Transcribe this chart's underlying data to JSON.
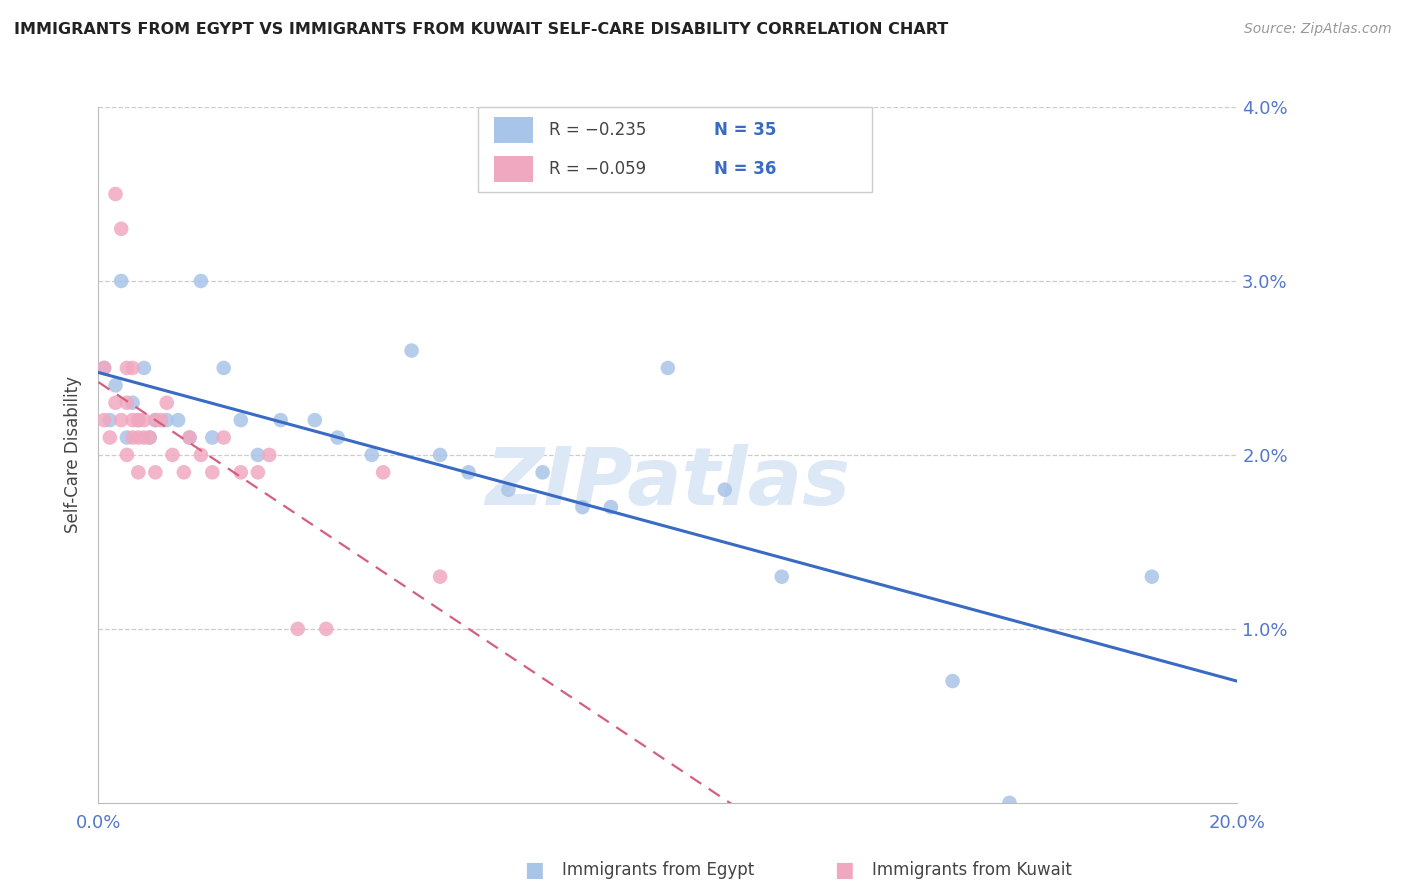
{
  "title": "IMMIGRANTS FROM EGYPT VS IMMIGRANTS FROM KUWAIT SELF-CARE DISABILITY CORRELATION CHART",
  "source": "Source: ZipAtlas.com",
  "ylabel": "Self-Care Disability",
  "xlim": [
    0.0,
    0.2
  ],
  "ylim": [
    0.0,
    0.04
  ],
  "legend_egypt_R": "-0.235",
  "legend_egypt_N": "35",
  "legend_kuwait_R": "-0.059",
  "legend_kuwait_N": "36",
  "egypt_color": "#a8c4e8",
  "kuwait_color": "#f0a8c0",
  "egypt_line_color": "#3a6bc4",
  "kuwait_line_color": "#d46080",
  "watermark": "ZIPatlas",
  "watermark_color": "#dce8f5",
  "egypt_x": [
    0.001,
    0.002,
    0.003,
    0.004,
    0.005,
    0.006,
    0.007,
    0.008,
    0.009,
    0.01,
    0.012,
    0.014,
    0.016,
    0.018,
    0.02,
    0.022,
    0.025,
    0.028,
    0.032,
    0.038,
    0.042,
    0.048,
    0.055,
    0.06,
    0.065,
    0.072,
    0.078,
    0.085,
    0.09,
    0.1,
    0.11,
    0.12,
    0.15,
    0.16,
    0.185
  ],
  "egypt_y": [
    0.025,
    0.022,
    0.024,
    0.03,
    0.021,
    0.023,
    0.022,
    0.025,
    0.021,
    0.022,
    0.022,
    0.022,
    0.021,
    0.03,
    0.021,
    0.025,
    0.022,
    0.02,
    0.022,
    0.022,
    0.021,
    0.02,
    0.026,
    0.02,
    0.019,
    0.018,
    0.019,
    0.017,
    0.017,
    0.025,
    0.018,
    0.013,
    0.007,
    0.0,
    0.013
  ],
  "kuwait_x": [
    0.001,
    0.001,
    0.002,
    0.003,
    0.003,
    0.004,
    0.004,
    0.005,
    0.005,
    0.005,
    0.006,
    0.006,
    0.006,
    0.007,
    0.007,
    0.007,
    0.008,
    0.008,
    0.009,
    0.01,
    0.01,
    0.011,
    0.012,
    0.013,
    0.015,
    0.016,
    0.018,
    0.02,
    0.022,
    0.025,
    0.028,
    0.03,
    0.035,
    0.04,
    0.05,
    0.06
  ],
  "kuwait_y": [
    0.025,
    0.022,
    0.021,
    0.023,
    0.035,
    0.033,
    0.022,
    0.025,
    0.02,
    0.023,
    0.025,
    0.022,
    0.021,
    0.022,
    0.021,
    0.019,
    0.022,
    0.021,
    0.021,
    0.022,
    0.019,
    0.022,
    0.023,
    0.02,
    0.019,
    0.021,
    0.02,
    0.019,
    0.021,
    0.019,
    0.019,
    0.02,
    0.01,
    0.01,
    0.019,
    0.013
  ]
}
